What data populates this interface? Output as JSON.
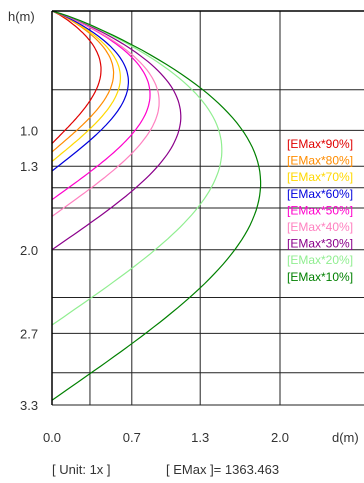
{
  "chart_data": {
    "type": "line",
    "title": "",
    "ylabel": "h(m)",
    "xlabel": "d(m)",
    "xlim": [
      0,
      3.0
    ],
    "ylim": [
      0,
      3.3
    ],
    "y_inverted": true,
    "grid": true,
    "x_ticks": [
      "0.0",
      "0.7",
      "1.3",
      "2.0"
    ],
    "x_tick_values": [
      0.0,
      0.7,
      1.3,
      2.0
    ],
    "y_ticks": [
      "1.0",
      "1.3",
      "2.0",
      "2.7",
      "3.3"
    ],
    "y_tick_values": [
      1.0,
      1.3,
      2.0,
      2.7,
      3.3
    ],
    "legend_position": "right",
    "series": [
      {
        "name": "[EMax*90%]",
        "color": "#e00000",
        "max_reach": 0.43,
        "max_depth": 1.11
      },
      {
        "name": "[EMax*80%]",
        "color": "#ff8c00",
        "max_reach": 0.54,
        "max_depth": 1.18
      },
      {
        "name": "[EMax*70%]",
        "color": "#ffd800",
        "max_reach": 0.6,
        "max_depth": 1.26
      },
      {
        "name": "[EMax*60%]",
        "color": "#0000dd",
        "max_reach": 0.67,
        "max_depth": 1.34
      },
      {
        "name": "[EMax*50%]",
        "color": "#ff00cc",
        "max_reach": 0.86,
        "max_depth": 1.58
      },
      {
        "name": "[EMax*40%]",
        "color": "#ff80c0",
        "max_reach": 0.94,
        "max_depth": 1.72
      },
      {
        "name": "[EMax*30%]",
        "color": "#8b008b",
        "max_reach": 1.13,
        "max_depth": 2.0
      },
      {
        "name": "[EMax*20%]",
        "color": "#90ee90",
        "max_reach": 1.49,
        "max_depth": 2.63
      },
      {
        "name": "[EMax*10%]",
        "color": "#008000",
        "max_reach": 1.83,
        "max_depth": 3.26
      }
    ]
  },
  "footer": {
    "unit_text": "[ Unit: 1x ]",
    "emax_text": "[ EMax ]= 1363.463"
  }
}
